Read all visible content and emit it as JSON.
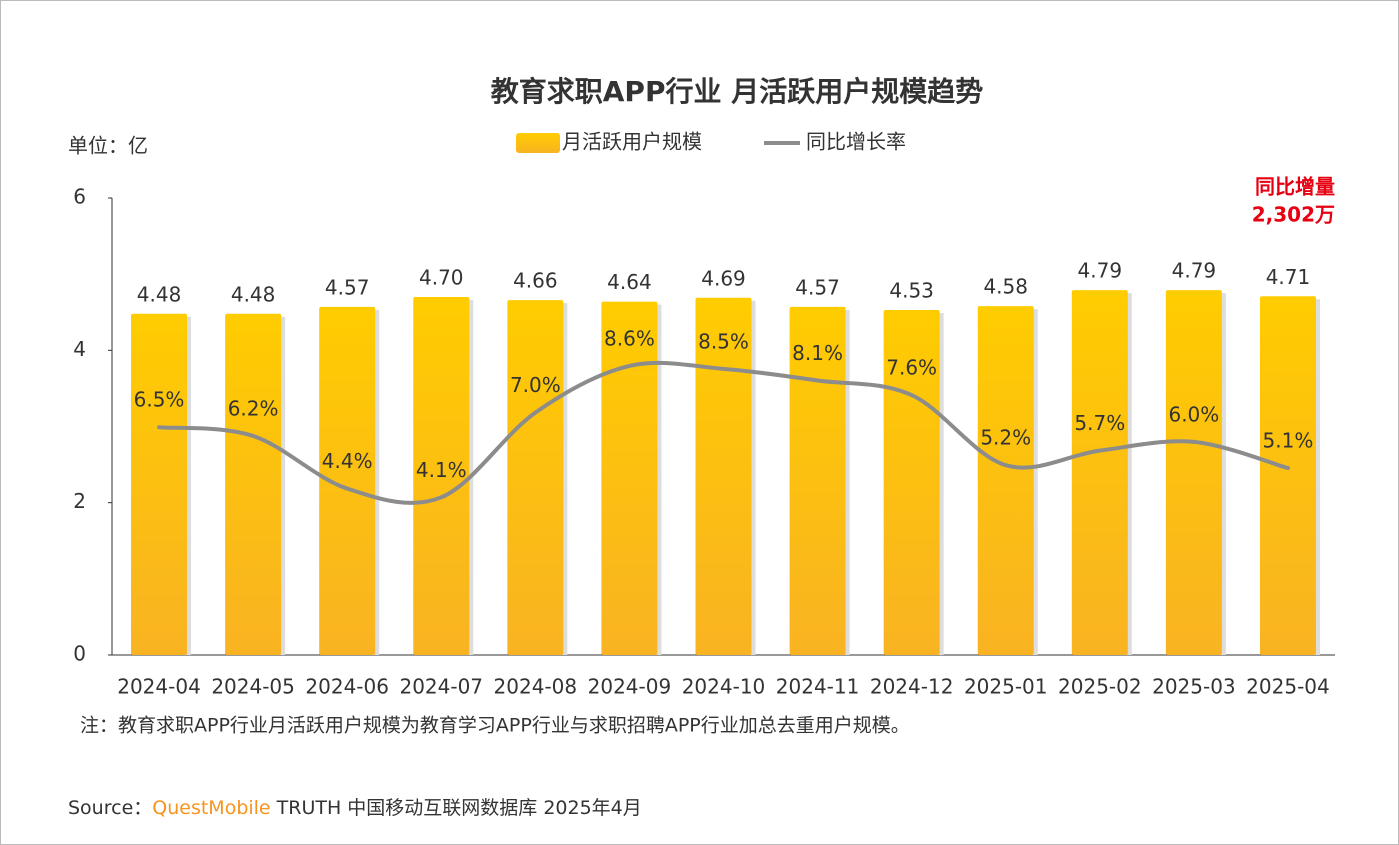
{
  "chart_data": {
    "type": "bar-line",
    "title": "教育求职APP行业 月活跃用户规模趋势",
    "unit_label": "单位：亿",
    "categories": [
      "2024-04",
      "2024-05",
      "2024-06",
      "2024-07",
      "2024-08",
      "2024-09",
      "2024-10",
      "2024-11",
      "2024-12",
      "2025-01",
      "2025-02",
      "2025-03",
      "2025-04"
    ],
    "series": [
      {
        "name": "月活跃用户规模",
        "type": "bar",
        "color": "#ffc20e",
        "values": [
          4.48,
          4.48,
          4.57,
          4.7,
          4.66,
          4.64,
          4.69,
          4.57,
          4.53,
          4.58,
          4.79,
          4.79,
          4.71
        ],
        "value_labels": [
          "4.48",
          "4.48",
          "4.57",
          "4.70",
          "4.66",
          "4.64",
          "4.69",
          "4.57",
          "4.53",
          "4.58",
          "4.79",
          "4.79",
          "4.71"
        ]
      },
      {
        "name": "同比增长率",
        "type": "line",
        "axis": "y2",
        "color": "#8c8c8c",
        "values": [
          6.5,
          6.2,
          4.4,
          4.1,
          7.0,
          8.6,
          8.5,
          8.1,
          7.6,
          5.2,
          5.7,
          6.0,
          5.1
        ],
        "value_labels": [
          "6.5%",
          "6.2%",
          "4.4%",
          "4.1%",
          "7.0%",
          "8.6%",
          "8.5%",
          "8.1%",
          "7.6%",
          "5.2%",
          "5.7%",
          "6.0%",
          "5.1%"
        ]
      }
    ],
    "ylim": [
      0,
      6
    ],
    "yticks": [
      0,
      2,
      4,
      6
    ],
    "y2lim": [
      -1.3,
      14.35
    ],
    "annotation": [
      "同比增量",
      "2,302万"
    ],
    "note": "注：教育求职APP行业月活跃用户规模为教育学习APP行业与求职招聘APP行业加总去重用户规模。",
    "source": [
      "Source：",
      "QuestMobile",
      "TRUTH 中国移动互联网数据库 2025年4月"
    ]
  }
}
